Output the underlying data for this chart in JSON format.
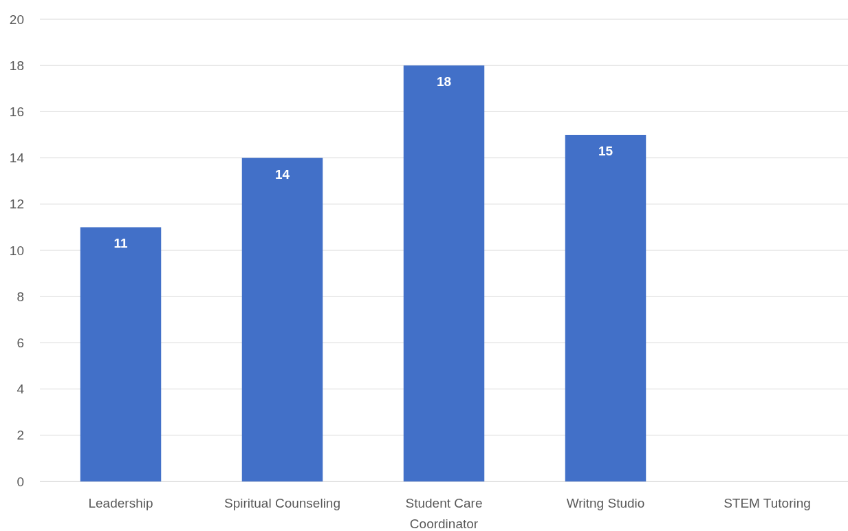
{
  "chart_data": {
    "type": "bar",
    "categories": [
      "Leadership",
      "Spiritual Counseling",
      "Student Care Coordinator",
      "Writng Studio",
      "STEM Tutoring"
    ],
    "values": [
      11,
      14,
      18,
      15,
      0
    ],
    "value_labels": [
      "11",
      "14",
      "18",
      "15",
      null
    ],
    "color": "#4270c8",
    "ylim": [
      0,
      20
    ],
    "yticks": [
      0,
      2,
      4,
      6,
      8,
      10,
      12,
      14,
      16,
      18,
      20
    ],
    "grid": "y"
  }
}
